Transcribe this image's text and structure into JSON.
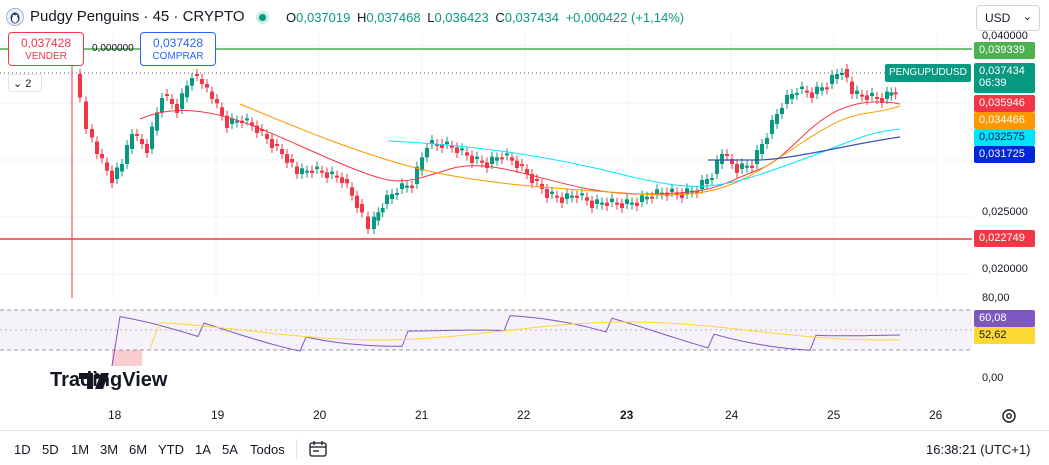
{
  "header": {
    "symbol_title": "Pudgy Penguins · 45 · CRYPTO",
    "ohlc": {
      "o_label": "O",
      "o_value": "0,037019",
      "h_label": "H",
      "h_value": "0,037468",
      "l_label": "L",
      "l_value": "0,036423",
      "c_label": "C",
      "c_value": "0,037434",
      "change": "+0,000422 (+1,14%)"
    },
    "currency": "USD"
  },
  "trade": {
    "sell_price": "0,037428",
    "sell_label": "VENDER",
    "spread": "0,000000",
    "buy_price": "0,037428",
    "buy_label": "COMPRAR"
  },
  "collapse_count": "2",
  "price_axis": {
    "ticks": [
      "0,040000",
      "0,025000",
      "0,020000"
    ],
    "rsi_ticks": [
      "80,00",
      "0,00"
    ]
  },
  "price_tags": {
    "high_line": "0,039339",
    "symbol": "PENGUPUDUSD",
    "last_price": "0,037434",
    "countdown": "06:39",
    "ma1": "0,035946",
    "ma2": "0,034466",
    "ma3": "0,032575",
    "ma4": "0,031725",
    "low_line": "0,022749",
    "rsi_value": "60,08",
    "rsi_ma": "52,62"
  },
  "colors": {
    "up": "#089981",
    "down": "#f23645",
    "ma_red": "#f23645",
    "ma_orange": "#ff9800",
    "ma_cyan": "#00e5ff",
    "ma_blue": "#2962ff",
    "high_line": "#4caf50",
    "low_line": "#f23645",
    "rsi": "#7e57c2",
    "rsi_ma": "#fdd835"
  },
  "time_axis": [
    "18",
    "19",
    "20",
    "21",
    "22",
    "23",
    "24",
    "25",
    "26"
  ],
  "branding": "TradingView",
  "ranges": [
    "1D",
    "5D",
    "1M",
    "3M",
    "6M",
    "YTD",
    "1A",
    "5A",
    "Todos"
  ],
  "clock": "16:38:21 (UTC+1)",
  "icons": {
    "symbol": "pudgy-penguin-icon",
    "live": "market-open-dot-icon",
    "calendar": "calendar-range-icon",
    "settings": "settings-icon"
  }
}
